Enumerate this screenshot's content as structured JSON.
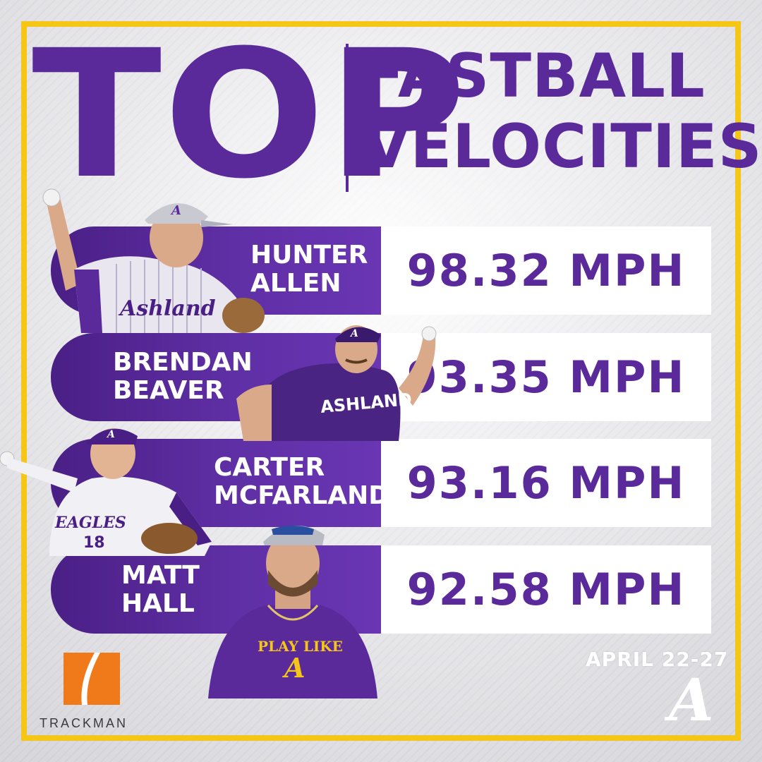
{
  "title": {
    "main": "TOP",
    "line1": "FASTBALL",
    "line2": "VELOCITIES"
  },
  "players": [
    {
      "first": "HUNTER",
      "last": "ALLEN",
      "velocity": "98.32 MPH",
      "jersey": "Ashland"
    },
    {
      "first": "BRENDAN",
      "last": "BEAVER",
      "velocity": "93.35 MPH",
      "jersey": "ASHLAND"
    },
    {
      "first": "CARTER",
      "last": "MCFARLAND",
      "velocity": "93.16 MPH",
      "jersey": "EAGLES",
      "number": "18"
    },
    {
      "first": "MATT",
      "last": "HALL",
      "velocity": "92.58 MPH",
      "shirt": "PLAY LIKE"
    }
  ],
  "date_range": "APRIL 22-27",
  "sponsor": {
    "name": "TRACKMAN",
    "icon": "trackman-logo-icon"
  },
  "team_logo": "A",
  "colors": {
    "purple": "#5a2a9b",
    "gold": "#f5c518",
    "trackman_orange": "#f07a1a"
  }
}
